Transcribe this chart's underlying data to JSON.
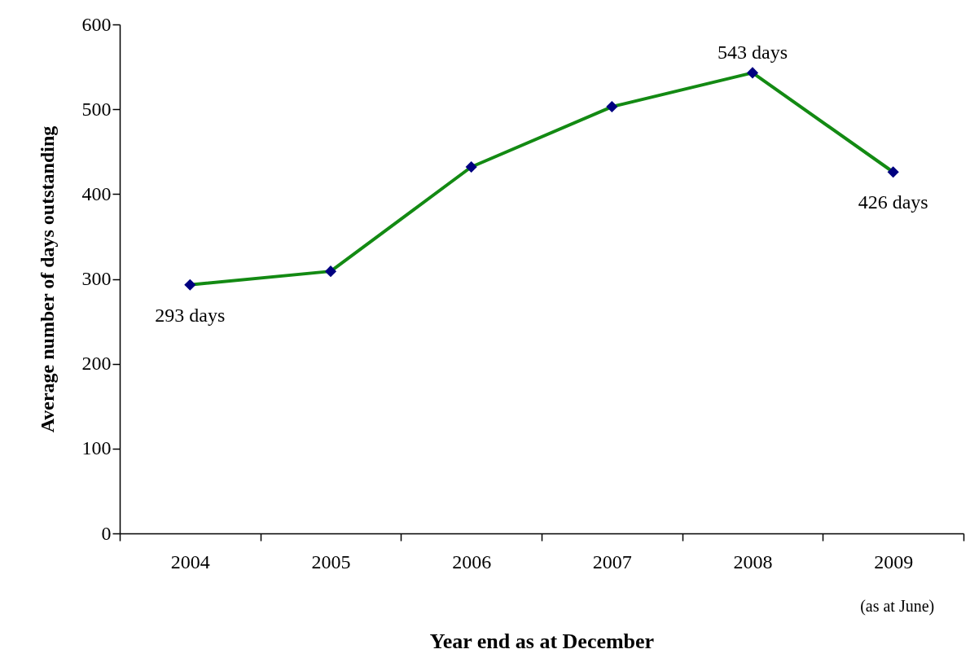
{
  "chart_data": {
    "type": "line",
    "xlabel": "Year end as at December",
    "ylabel": "Average number of days outstanding",
    "categories": [
      "2004",
      "2005",
      "2006",
      "2007",
      "2008",
      "2009"
    ],
    "series": [
      {
        "color": "#138a13",
        "colors": [
          "#000080",
          "#000080",
          "#000080",
          "#000080",
          "#000080",
          "#000080"
        ],
        "values": [
          293,
          309,
          432,
          503,
          543,
          426
        ],
        "value_labels": [
          "293 days",
          null,
          null,
          null,
          "543 days",
          "426 days"
        ]
      }
    ],
    "annotations": [
      "(as at June)"
    ],
    "ylim": [
      0,
      600
    ],
    "yticks": [
      0,
      100,
      200,
      300,
      400,
      500,
      600
    ],
    "marker": "diamond",
    "line_style": "solid",
    "grid": false
  }
}
